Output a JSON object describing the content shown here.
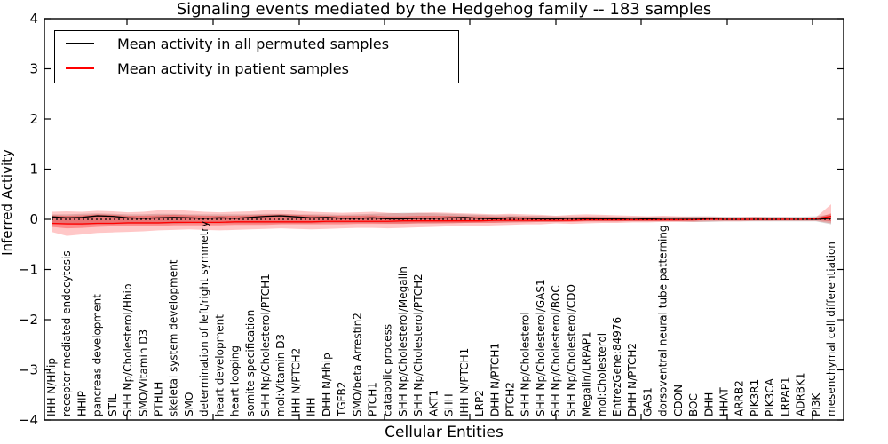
{
  "figure": {
    "title": "Signaling events mediated by the Hedgehog family -- 183 samples",
    "xlabel": "Cellular Entities",
    "ylabel": "Inferred Activity"
  },
  "legend": {
    "items": [
      {
        "id": "permuted-mean",
        "label": "Mean activity in all permuted samples",
        "color": "#000000"
      },
      {
        "id": "patient-mean",
        "label": "Mean activity in patient samples",
        "color": "#ff0000"
      }
    ]
  },
  "chart_data": {
    "type": "line",
    "title": "Signaling events mediated by the Hedgehog family -- 183 samples",
    "xlabel": "Cellular Entities",
    "ylabel": "Inferred Activity",
    "ylim": [
      -4,
      4
    ],
    "yticks": [
      4,
      3,
      2,
      1,
      0,
      -1,
      -2,
      -3,
      -4
    ],
    "ytick_labels": [
      "4",
      "3",
      "2",
      "1",
      "0",
      "−1",
      "−2",
      "−3",
      "−4"
    ],
    "grid": false,
    "legend_position": "upper left",
    "zero_line": {
      "style": "dotted",
      "color": "#000000",
      "y": 0
    },
    "categories": [
      "IHH N/Hhip",
      "receptor-mediated endocytosis",
      "HHIP",
      "pancreas development",
      "STIL",
      "SHH Np/Cholesterol/Hhip",
      "SMO/Vitamin D3",
      "PTHLH",
      "skeletal system development",
      "SMO",
      "determination of left/right symmetry",
      "heart development",
      "heart looping",
      "somite specification",
      "SHH Np/Cholesterol/PTCH1",
      "mol:Vitamin D3",
      "IHH N/PTCH2",
      "IHH",
      "DHH N/Hhip",
      "TGFB2",
      "SMO/beta Arrestin2",
      "PTCH1",
      "catabolic process",
      "SHH Np/Cholesterol/Megalin",
      "SHH Np/Cholesterol/PTCH2",
      "AKT1",
      "SHH",
      "IHH N/PTCH1",
      "LRP2",
      "DHH N/PTCH1",
      "PTCH2",
      "SHH Np/Cholesterol",
      "SHH Np/Cholesterol/GAS1",
      "SHH Np/Cholesterol/BOC",
      "SHH Np/Cholesterol/CDO",
      "Megalin/LRPAP1",
      "mol:Cholesterol",
      "EntrezGene:84976",
      "DHH N/PTCH2",
      "GAS1",
      "dorsoventral neural tube patterning",
      "CDON",
      "BOC",
      "DHH",
      "HHAT",
      "ARRB2",
      "PIK3R1",
      "PIK3CA",
      "LRPAP1",
      "ADRBK1",
      "PI3K",
      "mesenchymal cell differentiation"
    ],
    "series": [
      {
        "id": "permuted-mean",
        "name": "Mean activity in all permuted samples",
        "color": "#000000",
        "values": [
          0.05,
          0.03,
          0.04,
          0.07,
          0.06,
          0.03,
          0.02,
          0.03,
          0.04,
          0.03,
          0.02,
          0.03,
          0.02,
          0.04,
          0.06,
          0.07,
          0.05,
          0.03,
          0.04,
          0.02,
          0.02,
          0.03,
          0.01,
          0.01,
          0.02,
          0.02,
          0.03,
          0.04,
          0.02,
          0.01,
          0.03,
          0.02,
          0.01,
          0.01,
          0.02,
          0.01,
          0.01,
          0.01,
          0.0,
          0.01,
          0.0,
          0.0,
          0.0,
          0.01,
          0.0,
          0.0,
          0.0,
          0.0,
          0.0,
          0.0,
          0.0,
          0.02
        ]
      },
      {
        "id": "patient-mean",
        "name": "Mean activity in patient samples",
        "color": "#ff0000",
        "values": [
          -0.08,
          -0.09,
          -0.09,
          -0.08,
          -0.08,
          -0.07,
          -0.07,
          -0.07,
          -0.06,
          -0.06,
          -0.06,
          -0.06,
          -0.05,
          -0.05,
          -0.05,
          -0.05,
          -0.05,
          -0.05,
          -0.04,
          -0.04,
          -0.04,
          -0.04,
          -0.04,
          -0.03,
          -0.03,
          -0.03,
          -0.03,
          -0.03,
          -0.03,
          -0.02,
          -0.02,
          -0.02,
          -0.02,
          -0.02,
          -0.02,
          -0.01,
          -0.01,
          -0.01,
          -0.01,
          -0.01,
          -0.01,
          -0.01,
          -0.01,
          0.0,
          0.0,
          0.0,
          0.0,
          0.0,
          0.0,
          0.0,
          0.01,
          0.06
        ]
      }
    ],
    "bands": [
      {
        "id": "permuted-std-band",
        "color": "#999999",
        "opacity": 0.38,
        "top": [
          0.1,
          0.1,
          0.11,
          0.12,
          0.11,
          0.1,
          0.1,
          0.11,
          0.11,
          0.1,
          0.1,
          0.1,
          0.1,
          0.1,
          0.11,
          0.11,
          0.1,
          0.1,
          0.1,
          0.09,
          0.1,
          0.11,
          0.12,
          0.13,
          0.13,
          0.12,
          0.11,
          0.1,
          0.09,
          0.08,
          0.08,
          0.07,
          0.07,
          0.06,
          0.06,
          0.06,
          0.06,
          0.05,
          0.05,
          0.05,
          0.05,
          0.05,
          0.06,
          0.06,
          0.05,
          0.05,
          0.05,
          0.05,
          0.05,
          0.05,
          0.06,
          0.1
        ],
        "bottom": [
          -0.1,
          -0.1,
          -0.11,
          -0.1,
          -0.1,
          -0.09,
          -0.09,
          -0.09,
          -0.09,
          -0.08,
          -0.08,
          -0.08,
          -0.08,
          -0.08,
          -0.08,
          -0.08,
          -0.08,
          -0.08,
          -0.07,
          -0.07,
          -0.07,
          -0.07,
          -0.08,
          -0.08,
          -0.08,
          -0.08,
          -0.07,
          -0.07,
          -0.06,
          -0.06,
          -0.06,
          -0.05,
          -0.05,
          -0.05,
          -0.04,
          -0.04,
          -0.04,
          -0.04,
          -0.04,
          -0.04,
          -0.04,
          -0.04,
          -0.05,
          -0.05,
          -0.04,
          -0.04,
          -0.04,
          -0.04,
          -0.04,
          -0.04,
          -0.04,
          -0.1
        ]
      },
      {
        "id": "patient-std-band-outer",
        "color": "#ff0000",
        "opacity": 0.22,
        "top": [
          0.15,
          0.16,
          0.15,
          0.17,
          0.16,
          0.14,
          0.15,
          0.18,
          0.19,
          0.17,
          0.15,
          0.14,
          0.15,
          0.16,
          0.18,
          0.19,
          0.17,
          0.15,
          0.14,
          0.13,
          0.14,
          0.15,
          0.13,
          0.12,
          0.13,
          0.14,
          0.13,
          0.12,
          0.11,
          0.1,
          0.11,
          0.1,
          0.09,
          0.07,
          0.09,
          0.1,
          0.09,
          0.08,
          0.07,
          0.06,
          0.07,
          0.06,
          0.05,
          0.05,
          0.04,
          0.04,
          0.05,
          0.04,
          0.04,
          0.03,
          0.04,
          0.3
        ],
        "bottom": [
          -0.25,
          -0.33,
          -0.3,
          -0.27,
          -0.26,
          -0.25,
          -0.24,
          -0.22,
          -0.21,
          -0.2,
          -0.21,
          -0.22,
          -0.21,
          -0.2,
          -0.19,
          -0.18,
          -0.19,
          -0.2,
          -0.19,
          -0.18,
          -0.17,
          -0.17,
          -0.18,
          -0.17,
          -0.16,
          -0.15,
          -0.14,
          -0.13,
          -0.13,
          -0.12,
          -0.11,
          -0.1,
          -0.1,
          -0.08,
          -0.09,
          -0.08,
          -0.07,
          -0.07,
          -0.06,
          -0.06,
          -0.05,
          -0.05,
          -0.05,
          -0.04,
          -0.04,
          -0.04,
          -0.03,
          -0.03,
          -0.03,
          -0.03,
          -0.03,
          -0.08
        ]
      },
      {
        "id": "patient-std-band-inner",
        "color": "#ff0000",
        "opacity": 0.3,
        "top": [
          0.08,
          0.07,
          0.08,
          0.1,
          0.09,
          0.07,
          0.07,
          0.08,
          0.09,
          0.08,
          0.07,
          0.07,
          0.07,
          0.08,
          0.09,
          0.1,
          0.09,
          0.08,
          0.07,
          0.07,
          0.07,
          0.08,
          0.06,
          0.06,
          0.07,
          0.07,
          0.07,
          0.06,
          0.06,
          0.05,
          0.05,
          0.05,
          0.04,
          0.04,
          0.04,
          0.05,
          0.04,
          0.04,
          0.03,
          0.03,
          0.03,
          0.03,
          0.02,
          0.02,
          0.02,
          0.02,
          0.02,
          0.02,
          0.02,
          0.01,
          0.02,
          0.12
        ],
        "bottom": [
          -0.15,
          -0.18,
          -0.17,
          -0.15,
          -0.14,
          -0.14,
          -0.13,
          -0.13,
          -0.12,
          -0.12,
          -0.12,
          -0.12,
          -0.11,
          -0.11,
          -0.11,
          -0.1,
          -0.1,
          -0.1,
          -0.1,
          -0.1,
          -0.09,
          -0.09,
          -0.09,
          -0.09,
          -0.08,
          -0.08,
          -0.08,
          -0.07,
          -0.07,
          -0.07,
          -0.06,
          -0.06,
          -0.05,
          -0.05,
          -0.05,
          -0.04,
          -0.04,
          -0.04,
          -0.03,
          -0.03,
          -0.03,
          -0.03,
          -0.02,
          -0.02,
          -0.02,
          -0.02,
          -0.02,
          -0.02,
          -0.01,
          -0.01,
          -0.01,
          -0.04
        ]
      }
    ]
  }
}
